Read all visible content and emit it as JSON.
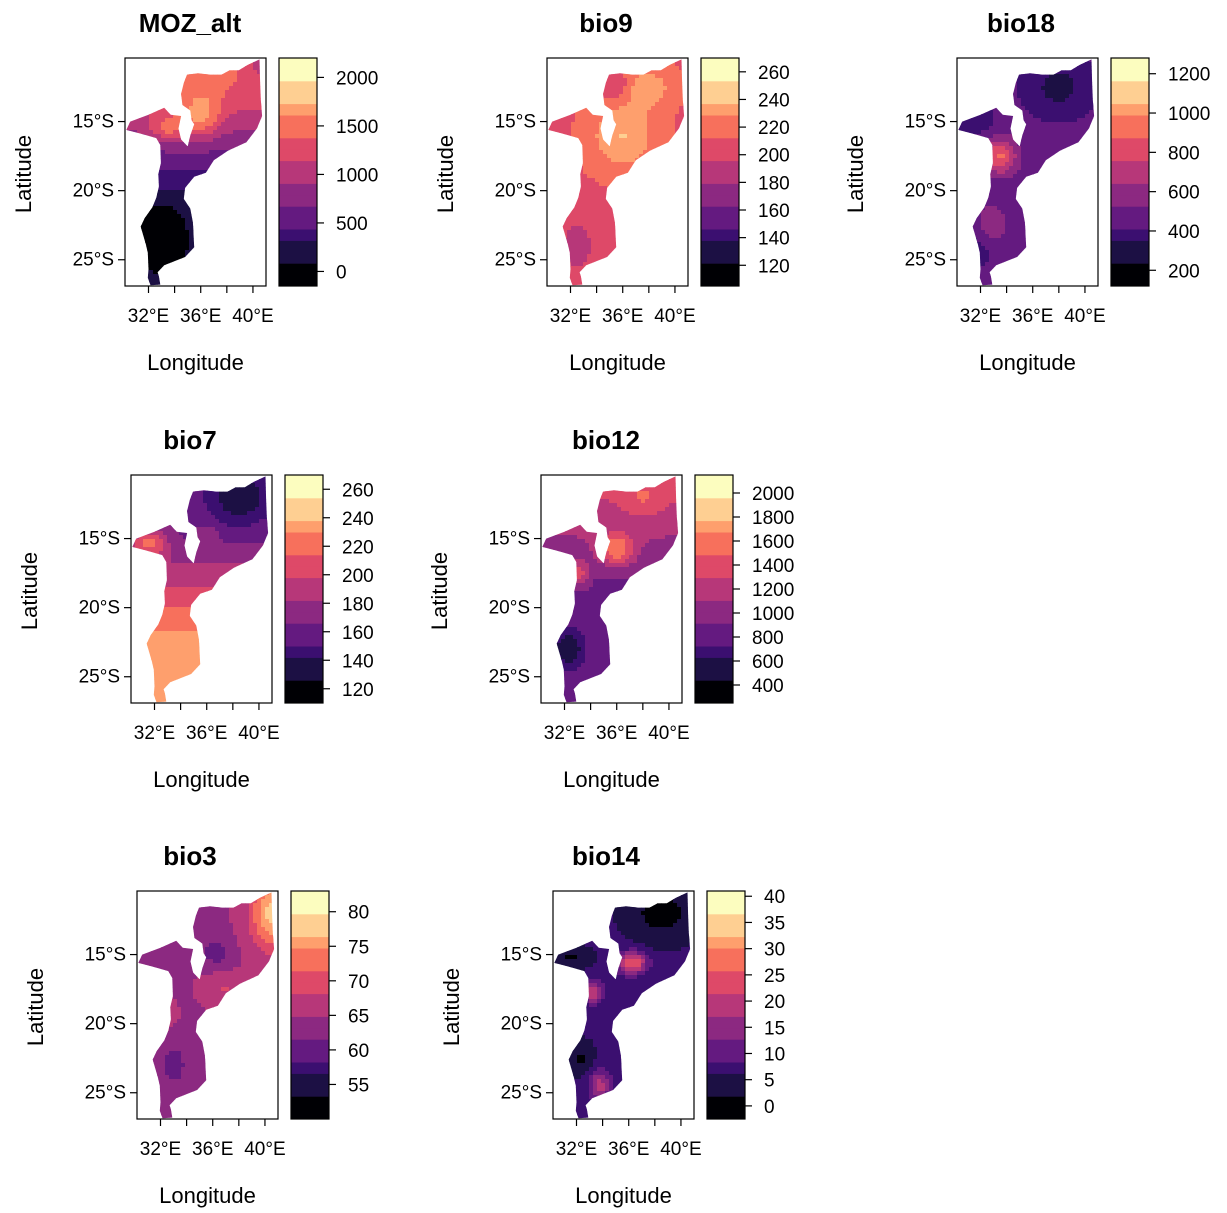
{
  "figure": {
    "xlabel": "Longitude",
    "ylabel": "Latitude",
    "lat_ticks": [
      "15°S",
      "20°S",
      "25°S"
    ],
    "lon_ticks": [
      "32°E",
      "36°E",
      "40°E"
    ]
  },
  "palette": [
    "#000004",
    "#1c1044",
    "#3b0f70",
    "#641a80",
    "#8c2981",
    "#b73779",
    "#de4968",
    "#f7705c",
    "#fe9f6d",
    "#fecf92",
    "#fcfdbf"
  ],
  "panels": [
    {
      "id": "moz-alt",
      "title": "MOZ_alt",
      "colorbar": {
        "min": -150,
        "max": 2200,
        "ticks": [
          0,
          500,
          1000,
          1500,
          2000
        ]
      },
      "pattern": "low-south-high-north"
    },
    {
      "id": "bio9",
      "title": "bio9",
      "colorbar": {
        "min": 105,
        "max": 270,
        "ticks": [
          120,
          140,
          160,
          180,
          200,
          220,
          240,
          260
        ]
      },
      "pattern": "warm-overall"
    },
    {
      "id": "bio18",
      "title": "bio18",
      "colorbar": {
        "min": 120,
        "max": 1280,
        "ticks": [
          200,
          400,
          600,
          800,
          1000,
          1200
        ]
      },
      "pattern": "dark-overall"
    },
    {
      "id": "bio7",
      "title": "bio7",
      "colorbar": {
        "min": 110,
        "max": 270,
        "ticks": [
          120,
          140,
          160,
          180,
          200,
          220,
          240,
          260
        ]
      },
      "pattern": "light-south-dark-north"
    },
    {
      "id": "bio12",
      "title": "bio12",
      "colorbar": {
        "min": 250,
        "max": 2150,
        "ticks": [
          400,
          600,
          800,
          1000,
          1200,
          1400,
          1600,
          1800,
          2000
        ]
      },
      "pattern": "dark-south-mid-north"
    },
    {
      "id": "bio3",
      "title": "bio3",
      "colorbar": {
        "min": 50,
        "max": 83,
        "ticks": [
          55,
          60,
          65,
          70,
          75,
          80
        ]
      },
      "pattern": "purple-bright-northeast"
    },
    {
      "id": "bio14",
      "title": "bio14",
      "colorbar": {
        "min": -2.5,
        "max": 41,
        "ticks": [
          0,
          5,
          10,
          15,
          20,
          25,
          30,
          35,
          40
        ]
      },
      "pattern": "dark-north-hotspots"
    }
  ]
}
